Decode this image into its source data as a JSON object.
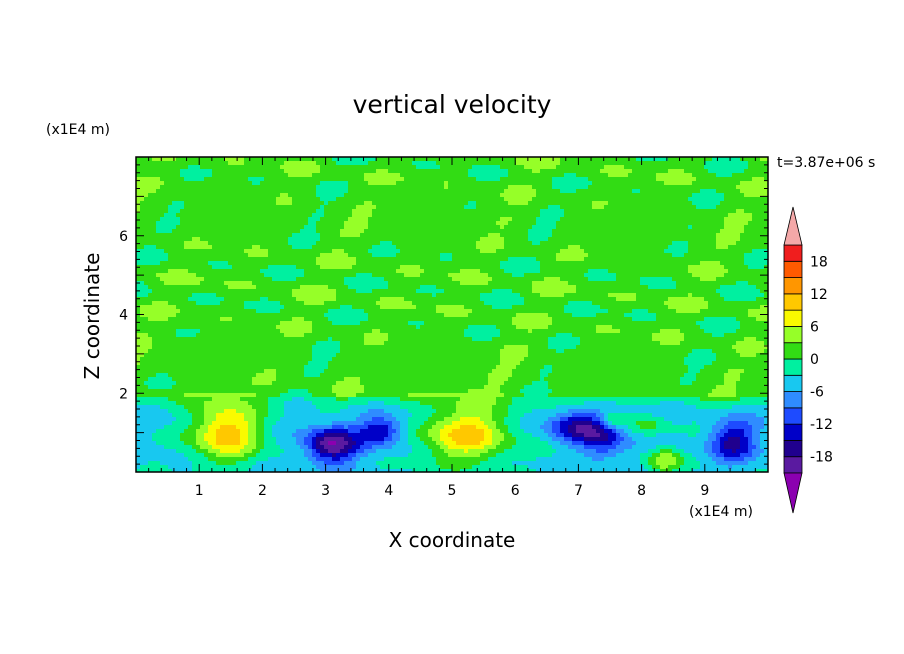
{
  "chart_data": {
    "type": "heatmap",
    "title": "vertical velocity",
    "xlabel": "X coordinate",
    "ylabel": "Z coordinate",
    "x_unit": "(x1E4 m)",
    "y_unit": "(x1E4 m)",
    "time_label": "t=3.87e+06 s",
    "xlim": [
      0,
      10
    ],
    "ylim": [
      0,
      8
    ],
    "x_ticks": [
      "1",
      "2",
      "3",
      "4",
      "5",
      "6",
      "7",
      "8",
      "9"
    ],
    "y_ticks": [
      "2",
      "4",
      "6"
    ],
    "colorbar": {
      "tick_labels": [
        "18",
        "12",
        "6",
        "0",
        "-6",
        "-12",
        "-18"
      ],
      "levels": [
        -21,
        -18,
        -15,
        -12,
        -9,
        -6,
        -3,
        0,
        3,
        6,
        9,
        12,
        15,
        18,
        21
      ],
      "colors": [
        "#8b00b0",
        "#5a1aa0",
        "#20008e",
        "#0000c8",
        "#1e4bff",
        "#2f8cff",
        "#18c8f0",
        "#00f0a0",
        "#32dc14",
        "#96ff28",
        "#fafa00",
        "#ffc800",
        "#ff9600",
        "#ff5a00",
        "#f01e1e",
        "#f4a8a8"
      ]
    },
    "background_value": 1.5,
    "lower_layer": {
      "z_top": 1.9,
      "value": -4
    },
    "features": [
      {
        "x": 1.45,
        "z": 1.0,
        "sx": 0.55,
        "sz": 0.75,
        "amp": 15
      },
      {
        "x": 5.25,
        "z": 0.95,
        "sx": 0.7,
        "sz": 0.75,
        "amp": 14
      },
      {
        "x": 3.1,
        "z": 0.7,
        "sx": 0.4,
        "sz": 0.45,
        "amp": -17
      },
      {
        "x": 3.85,
        "z": 1.05,
        "sx": 0.35,
        "sz": 0.35,
        "amp": -11
      },
      {
        "x": 7.0,
        "z": 1.15,
        "sx": 0.45,
        "sz": 0.4,
        "amp": -13
      },
      {
        "x": 7.4,
        "z": 0.8,
        "sx": 0.35,
        "sz": 0.45,
        "amp": -8
      },
      {
        "x": 9.45,
        "z": 0.8,
        "sx": 0.35,
        "sz": 0.5,
        "amp": -12
      },
      {
        "x": 8.35,
        "z": 0.3,
        "sx": 0.25,
        "sz": 0.3,
        "amp": 9
      },
      {
        "x": 7.55,
        "z": 1.3,
        "sx": 0.2,
        "sz": 0.2,
        "amp": 6
      },
      {
        "x": 8.1,
        "z": 1.15,
        "sx": 0.3,
        "sz": 0.25,
        "amp": 5
      }
    ]
  }
}
